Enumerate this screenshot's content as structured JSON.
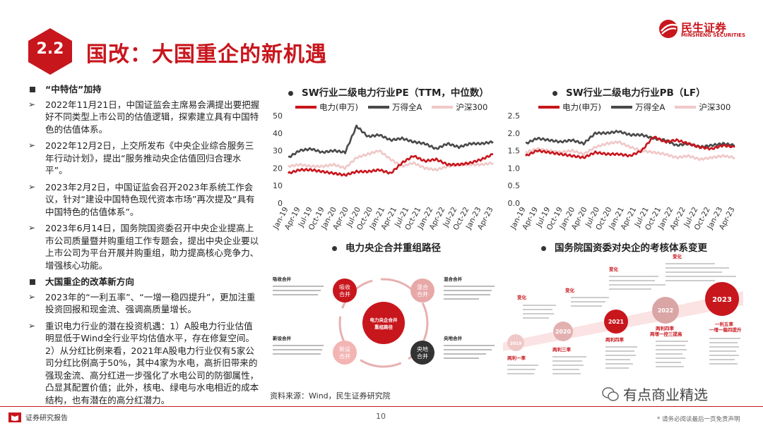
{
  "header": {
    "section_number": "2.2",
    "title": "国改：大国重企的新机遇",
    "logo_cn": "民生证券",
    "logo_en": "MINSHENG SECURITIES"
  },
  "left": {
    "heading1": "“中特估”加持",
    "bullets1": [
      "2022年11月21日，中国证监会主席易会满提出要把握好不同类型上市公司的估值逻辑，探索建立具有中国特色的估值体系。",
      "2022年12月2日，上交所发布《中央企业综合服务三年行动计划》，提出“服务推动央企估值回归合理水平”。",
      "2023年2月2日，中国证监会召开2023年系统工作会议，针对“建设中国特色现代资本市场”再次提及“具有中国特色的估值体系”。",
      "2023年6月14日，国务院国资委召开中央企业提高上市公司质量暨并购重组工作专题会，提出中央企业要以上市公司为平台开展并购重组，助力提高核心竞争力、增强核心功能。"
    ],
    "heading2": "大国重企的改革新方向",
    "bullets2": [
      "2023年的“一利五率”、“一增一稳四提升”，更加注重投资回报和现金流、强调高质量增长。",
      "重识电力行业的潜在投资机遇：1）A股电力行业估值明显低于Wind全行业平均估值水平，存在修复空间。2）从分红比例来看，2021年A股电力行业仅有5家公司分红比例高于50%，其中4家为水电，高折旧带来的强现金流、高分红进一步强化了水电公司的防御属性，凸显其配置价值；此外，核电、绿电与水电相近的成本结构，也有潜在的高分红潜力。"
    ]
  },
  "colors": {
    "power": "#c8161d",
    "wind_a": "#4a4a4a",
    "hs300": "#f0c8c8",
    "accent": "#c8161d"
  },
  "chart_data": [
    {
      "type": "line",
      "title": "SW行业二级电力行业PE（TTM，中位数）",
      "x": [
        "Jan-19",
        "Apr-19",
        "Jul-19",
        "Oct-19",
        "Jan-20",
        "Apr-20",
        "Jul-20",
        "Oct-20",
        "Jan-21",
        "Apr-21",
        "Jul-21",
        "Oct-21",
        "Jan-22",
        "Apr-22",
        "Jul-22",
        "Oct-22",
        "Jan-23",
        "Apr-23",
        "Jun-23"
      ],
      "ylim": [
        0,
        50
      ],
      "yticks": [
        "0",
        "10",
        "20",
        "30",
        "40",
        "50"
      ],
      "xticks": [
        "Jan-19",
        "Apr-19",
        "Jul-19",
        "Oct-19",
        "Jan-20",
        "Apr-20",
        "Jul-20",
        "Oct-20",
        "Jan-21",
        "Apr-21",
        "Jul-21",
        "Oct-21",
        "Jan-22",
        "Apr-22",
        "Jul-22",
        "Oct-22",
        "Jan-23",
        "Apr-23"
      ],
      "series": [
        {
          "name": "电力(申万)",
          "values": [
            17,
            19,
            19,
            18,
            17,
            16,
            18,
            18,
            19,
            17,
            23,
            27,
            24,
            25,
            22,
            22,
            23,
            25,
            28
          ]
        },
        {
          "name": "万得全A",
          "values": [
            26,
            30,
            31,
            29,
            30,
            29,
            44,
            38,
            39,
            36,
            37,
            35,
            34,
            31,
            34,
            32,
            34,
            34,
            35
          ]
        },
        {
          "name": "沪深300",
          "values": [
            21,
            22,
            21,
            21,
            22,
            20,
            26,
            28,
            30,
            25,
            21,
            23,
            20,
            19,
            21,
            22,
            22,
            22,
            23
          ]
        }
      ]
    },
    {
      "type": "line",
      "title": "SW行业二级电力行业PB（LF）",
      "x": [
        "Jan-19",
        "Apr-19",
        "Jul-19",
        "Oct-19",
        "Jan-20",
        "Apr-20",
        "Jul-20",
        "Oct-20",
        "Jan-21",
        "Apr-21",
        "Jul-21",
        "Oct-21",
        "Jan-22",
        "Apr-22",
        "Jul-22",
        "Oct-22",
        "Jan-23",
        "Apr-23",
        "Jun-23"
      ],
      "ylim": [
        0,
        2.5
      ],
      "yticks": [
        "0.0",
        "0.5",
        "1.0",
        "1.5",
        "2.0",
        "2.5"
      ],
      "xticks": [
        "Jan-19",
        "Apr-19",
        "Jul-19",
        "Oct-19",
        "Jan-20",
        "Apr-20",
        "Jul-20",
        "Oct-20",
        "Jan-21",
        "Apr-21",
        "Jul-21",
        "Oct-21",
        "Jan-22",
        "Apr-22",
        "Jul-22",
        "Oct-22",
        "Jan-23",
        "Apr-23"
      ],
      "series": [
        {
          "name": "电力(申万)",
          "values": [
            1.35,
            1.5,
            1.45,
            1.4,
            1.35,
            1.3,
            1.45,
            1.4,
            1.4,
            1.35,
            1.5,
            1.9,
            1.75,
            1.8,
            1.7,
            1.6,
            1.55,
            1.65,
            1.6
          ]
        },
        {
          "name": "万得全A",
          "values": [
            1.7,
            1.85,
            1.8,
            1.75,
            1.8,
            1.7,
            2.0,
            2.0,
            2.05,
            1.95,
            1.95,
            1.85,
            1.8,
            1.65,
            1.7,
            1.6,
            1.65,
            1.7,
            1.65
          ]
        },
        {
          "name": "沪深300",
          "values": [
            1.45,
            1.55,
            1.5,
            1.45,
            1.5,
            1.4,
            1.6,
            1.7,
            1.75,
            1.6,
            1.5,
            1.45,
            1.4,
            1.3,
            1.35,
            1.25,
            1.3,
            1.35,
            1.3
          ]
        }
      ]
    }
  ],
  "diagram_titles": {
    "merger": "电力央企合并重组路径",
    "assessment": "国务院国资委对央企的考核体系变更"
  },
  "merger": {
    "center": "电力央企合并重组路径",
    "nodes": [
      "吸收合并",
      "混合合并",
      "新设合并",
      "央地合并"
    ],
    "labels": [
      "吸收合并",
      "混合合并",
      "新设合并",
      "央地合并"
    ]
  },
  "assessment": {
    "years": [
      "2019",
      "2020",
      "2021",
      "2022",
      "2023"
    ],
    "labels": [
      "两利一率",
      "两利三率",
      "两利四率",
      "两利四率 两增一控三提高",
      "一利五率 一增一稳四提升"
    ],
    "top_labels": [
      "变化",
      "变化",
      "变化",
      "变化"
    ]
  },
  "source": "资料来源：Wind，民生证券研究院",
  "watermark": "有点商业精选",
  "footer": {
    "left": "证券研究报告",
    "page": "10",
    "disclaimer": "* 请务必阅读最后一页免责声明"
  }
}
